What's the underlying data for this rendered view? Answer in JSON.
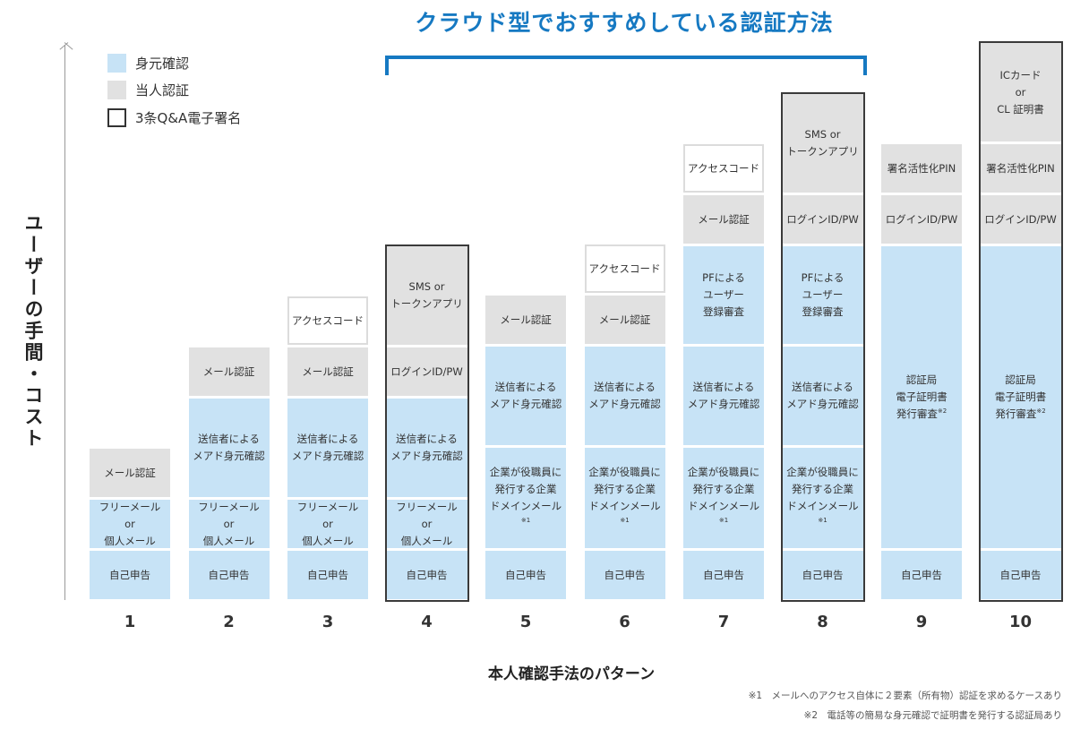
{
  "cloud_title": "クラウド型でおすすめしている認証方法",
  "y_axis_label": "ユーザーの手間・コスト",
  "x_axis_label": "本人確認手法のパターン",
  "legend": {
    "identity": "身元確認",
    "auth": "当人認証",
    "qa": "3条Q&A電子署名"
  },
  "colors": {
    "accent": "#1679c2",
    "identity": "#c7e3f6",
    "auth": "#e1e1e1",
    "frame": "#3a3a3a"
  },
  "patterns": [
    {
      "number": "1",
      "qa_signature": false,
      "cells": [
        {
          "text": "自己申告",
          "kind": "identity"
        },
        {
          "text": "フリーメール\nor\n個人メール",
          "kind": "identity"
        },
        {
          "text": "メール認証",
          "kind": "auth"
        }
      ]
    },
    {
      "number": "2",
      "qa_signature": false,
      "cells": [
        {
          "text": "自己申告",
          "kind": "identity"
        },
        {
          "text": "フリーメール\nor\n個人メール",
          "kind": "identity"
        },
        {
          "text": "送信者による\nメアド身元確認",
          "kind": "identity"
        },
        {
          "text": "メール認証",
          "kind": "auth"
        }
      ]
    },
    {
      "number": "3",
      "qa_signature": false,
      "cells": [
        {
          "text": "自己申告",
          "kind": "identity"
        },
        {
          "text": "フリーメール\nor\n個人メール",
          "kind": "identity"
        },
        {
          "text": "送信者による\nメアド身元確認",
          "kind": "identity"
        },
        {
          "text": "メール認証",
          "kind": "auth"
        },
        {
          "text": "アクセスコード",
          "kind": "qa"
        }
      ]
    },
    {
      "number": "4",
      "qa_signature": true,
      "cells": [
        {
          "text": "自己申告",
          "kind": "identity"
        },
        {
          "text": "フリーメール\nor\n個人メール",
          "kind": "identity"
        },
        {
          "text": "送信者による\nメアド身元確認",
          "kind": "identity"
        },
        {
          "text": "ログインID/PW",
          "kind": "auth"
        },
        {
          "text": "SMS or\nトークンアプリ",
          "kind": "auth"
        }
      ]
    },
    {
      "number": "5",
      "qa_signature": false,
      "cells": [
        {
          "text": "自己申告",
          "kind": "identity"
        },
        {
          "text": "企業が役職員に\n発行する企業\nドメインメール",
          "sup": "※1",
          "kind": "identity"
        },
        {
          "text": "送信者による\nメアド身元確認",
          "kind": "identity"
        },
        {
          "text": "メール認証",
          "kind": "auth"
        }
      ]
    },
    {
      "number": "6",
      "qa_signature": false,
      "cells": [
        {
          "text": "自己申告",
          "kind": "identity"
        },
        {
          "text": "企業が役職員に\n発行する企業\nドメインメール",
          "sup": "※1",
          "kind": "identity"
        },
        {
          "text": "送信者による\nメアド身元確認",
          "kind": "identity"
        },
        {
          "text": "メール認証",
          "kind": "auth"
        },
        {
          "text": "アクセスコード",
          "kind": "qa"
        }
      ]
    },
    {
      "number": "7",
      "qa_signature": false,
      "cells": [
        {
          "text": "自己申告",
          "kind": "identity"
        },
        {
          "text": "企業が役職員に\n発行する企業\nドメインメール",
          "sup": "※1",
          "kind": "identity"
        },
        {
          "text": "送信者による\nメアド身元確認",
          "kind": "identity"
        },
        {
          "text": "PFによる\nユーザー\n登録審査",
          "kind": "identity"
        },
        {
          "text": "メール認証",
          "kind": "auth"
        },
        {
          "text": "アクセスコード",
          "kind": "qa"
        }
      ]
    },
    {
      "number": "8",
      "qa_signature": true,
      "cells": [
        {
          "text": "自己申告",
          "kind": "identity"
        },
        {
          "text": "企業が役職員に\n発行する企業\nドメインメール",
          "sup": "※1",
          "kind": "identity"
        },
        {
          "text": "送信者による\nメアド身元確認",
          "kind": "identity"
        },
        {
          "text": "PFによる\nユーザー\n登録審査",
          "kind": "identity"
        },
        {
          "text": "ログインID/PW",
          "kind": "auth"
        },
        {
          "text": "SMS or\nトークンアプリ",
          "kind": "auth"
        }
      ]
    },
    {
      "number": "9",
      "qa_signature": false,
      "cells": [
        {
          "text": "自己申告",
          "kind": "identity"
        },
        {
          "text": "認証局\n電子証明書\n発行審査",
          "sup": "※2",
          "kind": "identity"
        },
        {
          "text": "ログインID/PW",
          "kind": "auth"
        },
        {
          "text": "署名活性化PIN",
          "kind": "auth"
        }
      ]
    },
    {
      "number": "10",
      "qa_signature": true,
      "cells": [
        {
          "text": "自己申告",
          "kind": "identity"
        },
        {
          "text": "認証局\n電子証明書\n発行審査",
          "sup": "※2",
          "kind": "identity"
        },
        {
          "text": "ログインID/PW",
          "kind": "auth"
        },
        {
          "text": "署名活性化PIN",
          "kind": "auth"
        },
        {
          "text": "ICカード\nor\nCL 証明書",
          "kind": "auth"
        }
      ]
    }
  ],
  "notes": [
    "※1　メールへのアクセス自体に２要素（所有物）認証を求めるケースあり",
    "※2　電話等の簡易な身元確認で証明書を発行する認証局あり"
  ]
}
